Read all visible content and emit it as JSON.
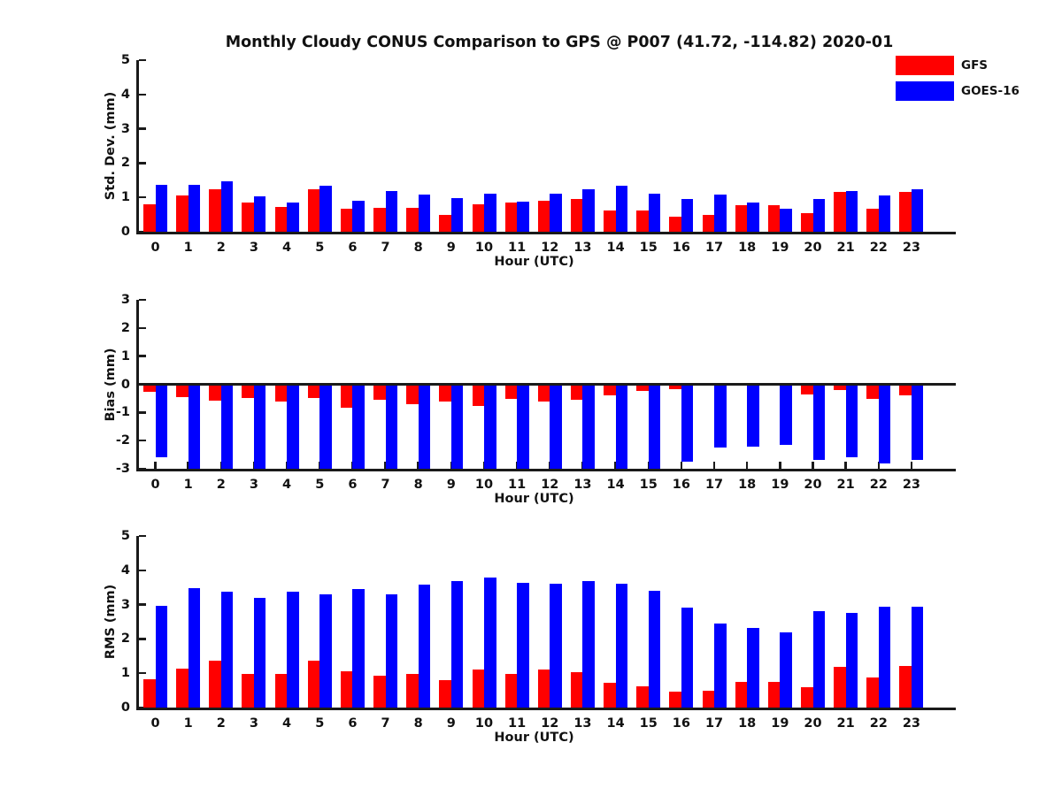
{
  "title": "Monthly Cloudy CONUS Comparison to GPS @ P007 (41.72, -114.82) 2020-01",
  "legend": {
    "position": "top-right",
    "items": [
      {
        "label": "GFS",
        "color": "#ff0000"
      },
      {
        "label": "GOES-16",
        "color": "#0000ff"
      }
    ]
  },
  "chart_data": [
    {
      "type": "bar",
      "panel": "std-dev",
      "ylabel": "Std. Dev. (mm)",
      "xlabel": "Hour (UTC)",
      "ylim": [
        0,
        5
      ],
      "yticks": [
        0,
        1,
        2,
        3,
        4,
        5
      ],
      "grid": false,
      "categories": [
        0,
        1,
        2,
        3,
        4,
        5,
        6,
        7,
        8,
        9,
        10,
        11,
        12,
        13,
        14,
        15,
        16,
        17,
        18,
        19,
        20,
        21,
        22,
        23
      ],
      "series": [
        {
          "name": "GFS",
          "color": "#ff0000",
          "values": [
            0.79,
            1.06,
            1.23,
            0.84,
            0.72,
            1.23,
            0.66,
            0.69,
            0.69,
            0.48,
            0.79,
            0.84,
            0.9,
            0.95,
            0.62,
            0.61,
            0.43,
            0.49,
            0.77,
            0.77,
            0.53,
            1.16,
            0.67,
            1.16
          ]
        },
        {
          "name": "GOES-16",
          "color": "#0000ff",
          "values": [
            1.36,
            1.36,
            1.47,
            1.03,
            0.86,
            1.34,
            0.9,
            1.19,
            1.07,
            0.97,
            1.12,
            0.88,
            1.1,
            1.25,
            1.34,
            1.12,
            0.95,
            1.09,
            0.86,
            0.66,
            0.95,
            1.19,
            1.05,
            1.25
          ]
        }
      ]
    },
    {
      "type": "bar",
      "panel": "bias",
      "ylabel": "Bias (mm)",
      "xlabel": "Hour (UTC)",
      "ylim": [
        -3,
        3
      ],
      "yticks": [
        -3,
        -2,
        -1,
        0,
        1,
        2,
        3
      ],
      "grid": false,
      "categories": [
        0,
        1,
        2,
        3,
        4,
        5,
        6,
        7,
        8,
        9,
        10,
        11,
        12,
        13,
        14,
        15,
        16,
        17,
        18,
        19,
        20,
        21,
        22,
        23
      ],
      "series": [
        {
          "name": "GFS",
          "color": "#ff0000",
          "values": [
            -0.26,
            -0.45,
            -0.57,
            -0.48,
            -0.62,
            -0.5,
            -0.83,
            -0.55,
            -0.7,
            -0.6,
            -0.78,
            -0.52,
            -0.62,
            -0.55,
            -0.4,
            -0.22,
            -0.18,
            -0.03,
            -0.04,
            0.04,
            -0.35,
            -0.21,
            -0.53,
            -0.4
          ]
        },
        {
          "name": "GOES-16",
          "color": "#0000ff",
          "values": [
            -2.6,
            -3.0,
            -3.0,
            -3.0,
            -3.0,
            -3.0,
            -3.0,
            -3.0,
            -3.0,
            -3.0,
            -3.0,
            -3.0,
            -3.0,
            -3.0,
            -3.0,
            -3.0,
            -2.75,
            -2.25,
            -2.2,
            -2.15,
            -2.7,
            -2.58,
            -2.8,
            -2.7
          ]
        }
      ]
    },
    {
      "type": "bar",
      "panel": "rms",
      "ylabel": "RMS (mm)",
      "xlabel": "Hour (UTC)",
      "ylim": [
        0,
        5
      ],
      "yticks": [
        0,
        1,
        2,
        3,
        4,
        5
      ],
      "grid": false,
      "categories": [
        0,
        1,
        2,
        3,
        4,
        5,
        6,
        7,
        8,
        9,
        10,
        11,
        12,
        13,
        14,
        15,
        16,
        17,
        18,
        19,
        20,
        21,
        22,
        23
      ],
      "series": [
        {
          "name": "GFS",
          "color": "#ff0000",
          "values": [
            0.83,
            1.14,
            1.36,
            0.97,
            0.97,
            1.36,
            1.05,
            0.93,
            0.99,
            0.79,
            1.12,
            0.99,
            1.1,
            1.03,
            0.73,
            0.63,
            0.47,
            0.5,
            0.76,
            0.76,
            0.6,
            1.19,
            0.87,
            1.22
          ]
        },
        {
          "name": "GOES-16",
          "color": "#0000ff",
          "values": [
            2.97,
            3.49,
            3.38,
            3.2,
            3.38,
            3.31,
            3.46,
            3.31,
            3.59,
            3.68,
            3.79,
            3.64,
            3.62,
            3.69,
            3.6,
            3.39,
            2.91,
            2.44,
            2.31,
            2.2,
            2.8,
            2.77,
            2.93,
            2.93
          ]
        }
      ]
    }
  ]
}
